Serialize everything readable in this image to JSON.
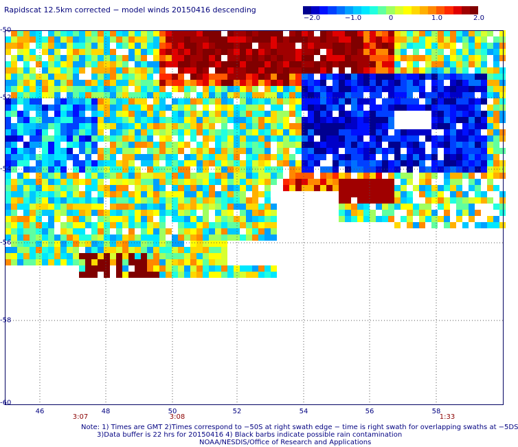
{
  "title": "Rapidscat 12.5km corrected − model winds 20150416 descending",
  "colorbar": {
    "labels": [
      "−2.0",
      "−1.0",
      "0",
      "1.0",
      "2.0"
    ],
    "range": [
      -2.0,
      2.0
    ],
    "colors": [
      "#00008f",
      "#0000c8",
      "#0010ff",
      "#0040ff",
      "#0070ff",
      "#00a0ff",
      "#00c8ff",
      "#00e8ff",
      "#20ffe0",
      "#60ffa0",
      "#a0ff60",
      "#d8ff30",
      "#ffff00",
      "#ffd800",
      "#ffb000",
      "#ff8800",
      "#ff5800",
      "#ff2800",
      "#e00000",
      "#a00000",
      "#800000"
    ]
  },
  "axes": {
    "x_ticks": [
      "46",
      "48",
      "50",
      "52",
      "54",
      "56",
      "58"
    ],
    "x_range": [
      45.0,
      60.0
    ],
    "y_ticks": [
      "-50",
      "-52",
      "-54",
      "-56",
      "-58",
      "-60"
    ],
    "y_range": [
      -60.0,
      -50.0
    ]
  },
  "time_labels": [
    "3:07",
    "3:08",
    "1:33"
  ],
  "notes": [
    "Note: 1) Times are GMT 2)Times correspond to −50S at right swath edge − time is right swath for overlapping swaths at −5DS",
    "3)Data buffer is 22 hrs for 20150416 4) Black barbs indicate possible rain contamination",
    "NOAA/NESDIS/Office of Research and Applications"
  ]
}
